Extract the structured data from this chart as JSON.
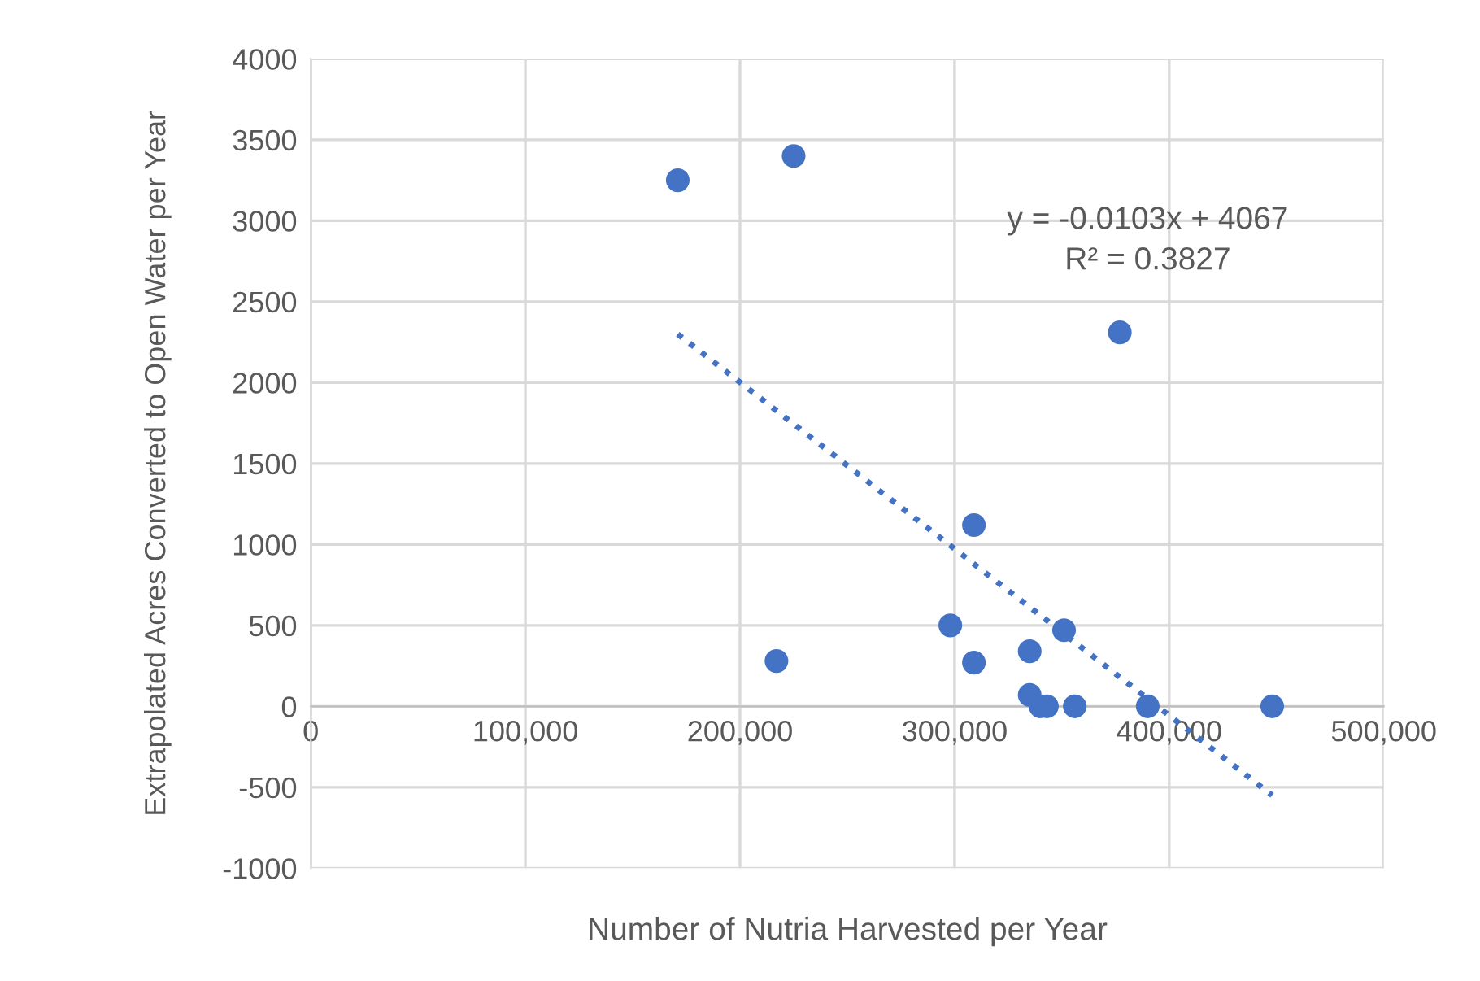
{
  "chart_data": {
    "type": "scatter",
    "xlabel": "Number of Nutria Harvested per Year",
    "ylabel": "Extrapolated Acres Converted to Open Water per Year",
    "series": [
      {
        "color": "#4472c4",
        "marker": "circle",
        "x": [
          171000,
          225000,
          377000,
          309000,
          298000,
          217000,
          309000,
          335000,
          351000,
          335000,
          340000,
          343000,
          356000,
          390000,
          448000
        ],
        "values": [
          3250,
          3400,
          2310,
          1120,
          500,
          280,
          270,
          340,
          470,
          70,
          0,
          0,
          0,
          0,
          0
        ]
      },
      {
        "type": "line",
        "color": "#4472c4",
        "line_style": "dotted",
        "x": [
          171000,
          448000
        ],
        "values": [
          2300,
          -550
        ]
      }
    ],
    "annotations": [
      "y = -0.0103x + 4067",
      "R² = 0.3827"
    ],
    "xlim": [
      0,
      500000
    ],
    "xticks": [
      {
        "value": 0,
        "label": "0"
      },
      {
        "value": 100000,
        "label": "100,000"
      },
      {
        "value": 200000,
        "label": "200,000"
      },
      {
        "value": 300000,
        "label": "300,000"
      },
      {
        "value": 400000,
        "label": "400,000"
      },
      {
        "value": 500000,
        "label": "500,000"
      }
    ],
    "ylim": [
      -1000,
      4000
    ],
    "yticks": [
      -1000,
      -500,
      0,
      500,
      1000,
      1500,
      2000,
      2500,
      3000,
      3500,
      4000
    ],
    "grid": true,
    "legend": false
  }
}
